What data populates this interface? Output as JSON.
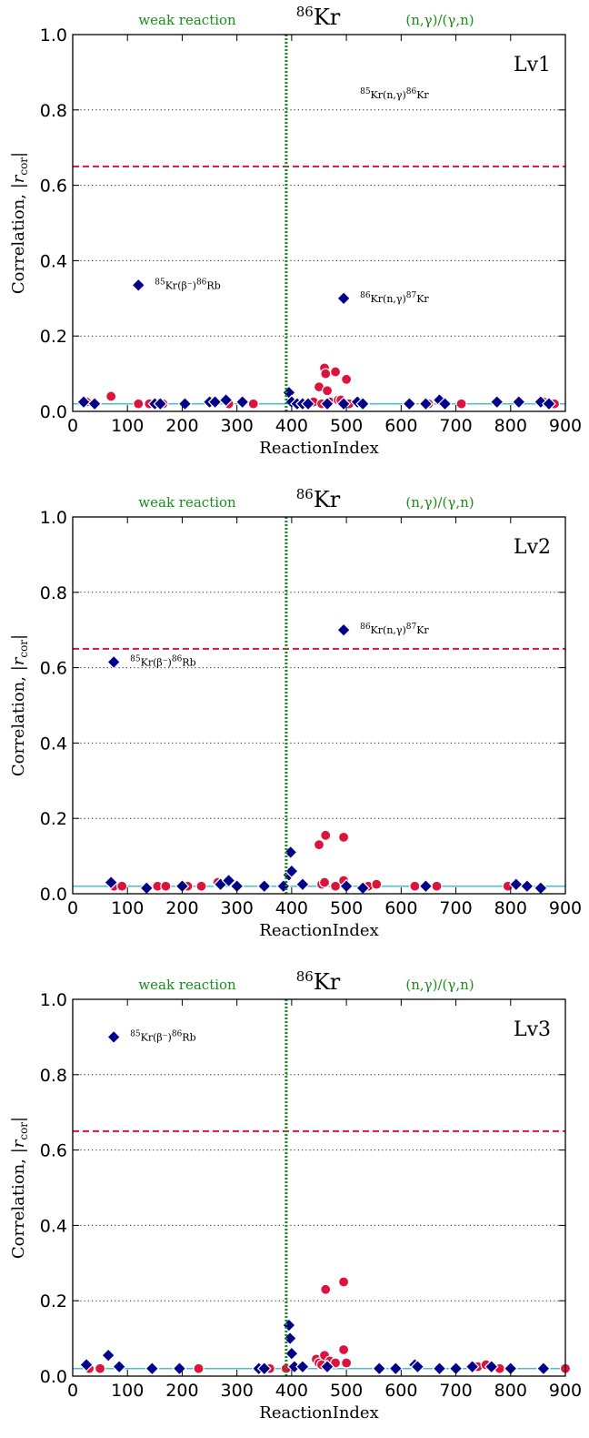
{
  "chart_data": [
    {
      "type": "scatter",
      "title": "86Kr",
      "title_parts": {
        "mass": "86",
        "element": "Kr"
      },
      "panel_label": "Lv1",
      "xlabel": "ReactionIndex",
      "ylabel": "Correlation, |r_cor|",
      "xlim": [
        0,
        900
      ],
      "ylim": [
        0,
        1.0
      ],
      "xticks": [
        "0",
        "100",
        "200",
        "300",
        "400",
        "500",
        "600",
        "700",
        "800",
        "900"
      ],
      "yticks": [
        "0.0",
        "0.2",
        "0.4",
        "0.6",
        "0.8",
        "1.0"
      ],
      "grid": "horizontal dotted at 0.2, 0.4, 0.6, 0.8",
      "threshold": 0.65,
      "baseline": 0.02,
      "divider_x": 390,
      "left_region_label": "weak reaction",
      "right_region_label": "(n,γ)/(γ,n)",
      "annotations": [
        {
          "text_parts": [
            "85",
            "Kr(n,γ)",
            "86",
            "Kr"
          ],
          "x": 495,
          "y": 0.84
        },
        {
          "text_parts": [
            "85",
            "Kr(β⁻)",
            "86",
            "Rb"
          ],
          "x": 120,
          "y": 0.335
        },
        {
          "text_parts": [
            "86",
            "Kr(n,γ)",
            "87",
            "Kr"
          ],
          "x": 495,
          "y": 0.3
        }
      ],
      "series": [
        {
          "marker": "circle",
          "color": "#dc143c",
          "points": [
            [
              25,
              0.025
            ],
            [
              70,
              0.04
            ],
            [
              120,
              0.02
            ],
            [
              140,
              0.02
            ],
            [
              165,
              0.02
            ],
            [
              285,
              0.02
            ],
            [
              330,
              0.02
            ],
            [
              440,
              0.025
            ],
            [
              450,
              0.065
            ],
            [
              455,
              0.02
            ],
            [
              460,
              0.115
            ],
            [
              462,
              0.1
            ],
            [
              465,
              0.055
            ],
            [
              470,
              0.025
            ],
            [
              480,
              0.105
            ],
            [
              485,
              0.03
            ],
            [
              490,
              0.03
            ],
            [
              500,
              0.085
            ],
            [
              505,
              0.02
            ],
            [
              650,
              0.02
            ],
            [
              680,
              0.02
            ],
            [
              710,
              0.02
            ],
            [
              860,
              0.025
            ],
            [
              880,
              0.02
            ]
          ]
        },
        {
          "marker": "diamond",
          "color": "#00008b",
          "points": [
            [
              20,
              0.025
            ],
            [
              40,
              0.02
            ],
            [
              150,
              0.02
            ],
            [
              160,
              0.02
            ],
            [
              205,
              0.02
            ],
            [
              250,
              0.025
            ],
            [
              260,
              0.025
            ],
            [
              280,
              0.03
            ],
            [
              310,
              0.025
            ],
            [
              395,
              0.05
            ],
            [
              400,
              0.025
            ],
            [
              410,
              0.02
            ],
            [
              420,
              0.02
            ],
            [
              430,
              0.02
            ],
            [
              465,
              0.02
            ],
            [
              495,
              0.02
            ],
            [
              520,
              0.025
            ],
            [
              530,
              0.02
            ],
            [
              615,
              0.02
            ],
            [
              645,
              0.02
            ],
            [
              670,
              0.03
            ],
            [
              680,
              0.02
            ],
            [
              775,
              0.025
            ],
            [
              815,
              0.025
            ],
            [
              855,
              0.025
            ],
            [
              870,
              0.02
            ],
            [
              120,
              0.335
            ],
            [
              495,
              0.3
            ]
          ]
        }
      ]
    },
    {
      "type": "scatter",
      "title": "86Kr",
      "title_parts": {
        "mass": "86",
        "element": "Kr"
      },
      "panel_label": "Lv2",
      "xlabel": "ReactionIndex",
      "ylabel": "Correlation, |r_cor|",
      "xlim": [
        0,
        900
      ],
      "ylim": [
        0,
        1.0
      ],
      "xticks": [
        "0",
        "100",
        "200",
        "300",
        "400",
        "500",
        "600",
        "700",
        "800",
        "900"
      ],
      "yticks": [
        "0.0",
        "0.2",
        "0.4",
        "0.6",
        "0.8",
        "1.0"
      ],
      "grid": "horizontal dotted at 0.2, 0.4, 0.6, 0.8",
      "threshold": 0.65,
      "baseline": 0.02,
      "divider_x": 390,
      "left_region_label": "weak reaction",
      "right_region_label": "(n,γ)/(γ,n)",
      "annotations": [
        {
          "text_parts": [
            "86",
            "Kr(n,γ)",
            "87",
            "Kr"
          ],
          "x": 495,
          "y": 0.7
        },
        {
          "text_parts": [
            "85",
            "Kr(β⁻)",
            "86",
            "Rb"
          ],
          "x": 75,
          "y": 0.615
        }
      ],
      "series": [
        {
          "marker": "circle",
          "color": "#dc143c",
          "points": [
            [
              75,
              0.02
            ],
            [
              90,
              0.02
            ],
            [
              155,
              0.02
            ],
            [
              170,
              0.02
            ],
            [
              210,
              0.02
            ],
            [
              235,
              0.02
            ],
            [
              265,
              0.03
            ],
            [
              450,
              0.13
            ],
            [
              455,
              0.025
            ],
            [
              460,
              0.03
            ],
            [
              462,
              0.155
            ],
            [
              480,
              0.02
            ],
            [
              495,
              0.15
            ],
            [
              495,
              0.035
            ],
            [
              540,
              0.02
            ],
            [
              555,
              0.025
            ],
            [
              625,
              0.02
            ],
            [
              665,
              0.02
            ],
            [
              795,
              0.02
            ]
          ]
        },
        {
          "marker": "diamond",
          "color": "#00008b",
          "points": [
            [
              70,
              0.03
            ],
            [
              135,
              0.015
            ],
            [
              200,
              0.02
            ],
            [
              270,
              0.025
            ],
            [
              285,
              0.035
            ],
            [
              300,
              0.02
            ],
            [
              350,
              0.02
            ],
            [
              385,
              0.02
            ],
            [
              395,
              0.05
            ],
            [
              398,
              0.11
            ],
            [
              400,
              0.06
            ],
            [
              420,
              0.025
            ],
            [
              500,
              0.02
            ],
            [
              530,
              0.015
            ],
            [
              645,
              0.02
            ],
            [
              810,
              0.025
            ],
            [
              830,
              0.02
            ],
            [
              855,
              0.015
            ],
            [
              75,
              0.615
            ],
            [
              495,
              0.7
            ]
          ]
        }
      ]
    },
    {
      "type": "scatter",
      "title": "86Kr",
      "title_parts": {
        "mass": "86",
        "element": "Kr"
      },
      "panel_label": "Lv3",
      "xlabel": "ReactionIndex",
      "ylabel": "Correlation, |r_cor|",
      "xlim": [
        0,
        900
      ],
      "ylim": [
        0,
        1.0
      ],
      "xticks": [
        "0",
        "100",
        "200",
        "300",
        "400",
        "500",
        "600",
        "700",
        "800",
        "900"
      ],
      "yticks": [
        "0.0",
        "0.2",
        "0.4",
        "0.6",
        "0.8",
        "1.0"
      ],
      "grid": "horizontal dotted at 0.2, 0.4, 0.6, 0.8",
      "threshold": 0.65,
      "baseline": 0.02,
      "divider_x": 390,
      "left_region_label": "weak reaction",
      "right_region_label": "(n,γ)/(γ,n)",
      "annotations": [
        {
          "text_parts": [
            "85",
            "Kr(β⁻)",
            "86",
            "Rb"
          ],
          "x": 75,
          "y": 0.9
        }
      ],
      "series": [
        {
          "marker": "circle",
          "color": "#dc143c",
          "points": [
            [
              30,
              0.02
            ],
            [
              50,
              0.02
            ],
            [
              230,
              0.02
            ],
            [
              360,
              0.02
            ],
            [
              390,
              0.02
            ],
            [
              445,
              0.045
            ],
            [
              450,
              0.035
            ],
            [
              455,
              0.03
            ],
            [
              460,
              0.055
            ],
            [
              462,
              0.23
            ],
            [
              470,
              0.04
            ],
            [
              480,
              0.035
            ],
            [
              495,
              0.25
            ],
            [
              495,
              0.07
            ],
            [
              500,
              0.035
            ],
            [
              740,
              0.025
            ],
            [
              755,
              0.03
            ],
            [
              780,
              0.02
            ],
            [
              900,
              0.02
            ]
          ]
        },
        {
          "marker": "diamond",
          "color": "#00008b",
          "points": [
            [
              25,
              0.03
            ],
            [
              65,
              0.055
            ],
            [
              85,
              0.025
            ],
            [
              145,
              0.02
            ],
            [
              195,
              0.02
            ],
            [
              340,
              0.02
            ],
            [
              350,
              0.02
            ],
            [
              395,
              0.135
            ],
            [
              397,
              0.1
            ],
            [
              400,
              0.06
            ],
            [
              405,
              0.025
            ],
            [
              420,
              0.025
            ],
            [
              465,
              0.025
            ],
            [
              560,
              0.02
            ],
            [
              590,
              0.02
            ],
            [
              625,
              0.03
            ],
            [
              630,
              0.025
            ],
            [
              670,
              0.02
            ],
            [
              700,
              0.02
            ],
            [
              730,
              0.025
            ],
            [
              765,
              0.025
            ],
            [
              800,
              0.02
            ],
            [
              860,
              0.02
            ],
            [
              75,
              0.9
            ]
          ]
        }
      ]
    }
  ]
}
